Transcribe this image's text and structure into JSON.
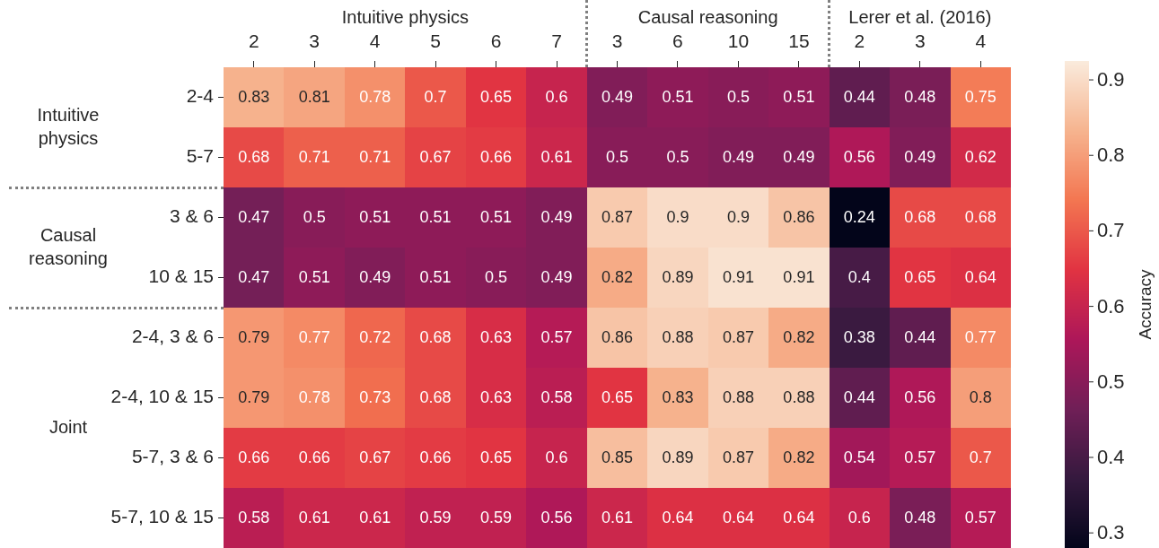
{
  "chart_data": {
    "type": "heatmap",
    "categories": [
      "2",
      "3",
      "4",
      "5",
      "6",
      "7",
      "3",
      "6",
      "10",
      "15",
      "2",
      "3",
      "4"
    ],
    "y_categories": [
      "2-4",
      "5-7",
      "3 & 6",
      "10 & 15",
      "2-4, 3 & 6",
      "2-4, 10 & 15",
      "5-7, 3 & 6",
      "5-7, 10 & 15"
    ],
    "cells": [
      [
        0.83,
        0.81,
        0.78,
        0.7,
        0.65,
        0.6,
        0.49,
        0.51,
        0.5,
        0.51,
        0.44,
        0.48,
        0.75
      ],
      [
        0.68,
        0.71,
        0.71,
        0.67,
        0.66,
        0.61,
        0.5,
        0.5,
        0.49,
        0.49,
        0.56,
        0.49,
        0.62
      ],
      [
        0.47,
        0.5,
        0.51,
        0.51,
        0.51,
        0.49,
        0.87,
        0.9,
        0.9,
        0.86,
        0.24,
        0.68,
        0.68
      ],
      [
        0.47,
        0.51,
        0.49,
        0.51,
        0.5,
        0.49,
        0.82,
        0.89,
        0.91,
        0.91,
        0.4,
        0.65,
        0.64
      ],
      [
        0.79,
        0.77,
        0.72,
        0.68,
        0.63,
        0.57,
        0.86,
        0.88,
        0.87,
        0.82,
        0.38,
        0.44,
        0.77
      ],
      [
        0.79,
        0.78,
        0.73,
        0.68,
        0.63,
        0.58,
        0.65,
        0.83,
        0.88,
        0.88,
        0.44,
        0.56,
        0.8
      ],
      [
        0.66,
        0.66,
        0.67,
        0.66,
        0.65,
        0.6,
        0.85,
        0.89,
        0.87,
        0.82,
        0.54,
        0.57,
        0.7
      ],
      [
        0.58,
        0.61,
        0.61,
        0.59,
        0.59,
        0.56,
        0.61,
        0.64,
        0.64,
        0.64,
        0.6,
        0.48,
        0.57
      ]
    ],
    "data_labels": true,
    "clim": [
      0.28,
      0.925
    ],
    "cticks": [
      0.3,
      0.4,
      0.5,
      0.6,
      0.7,
      0.8,
      0.9
    ],
    "clabel": "Accuracy",
    "annotations": [
      "Intuitive physics",
      "Causal reasoning",
      "Lerer et al. (2016)",
      "Intuitive physics",
      "Causal reasoning",
      "Joint"
    ]
  }
}
